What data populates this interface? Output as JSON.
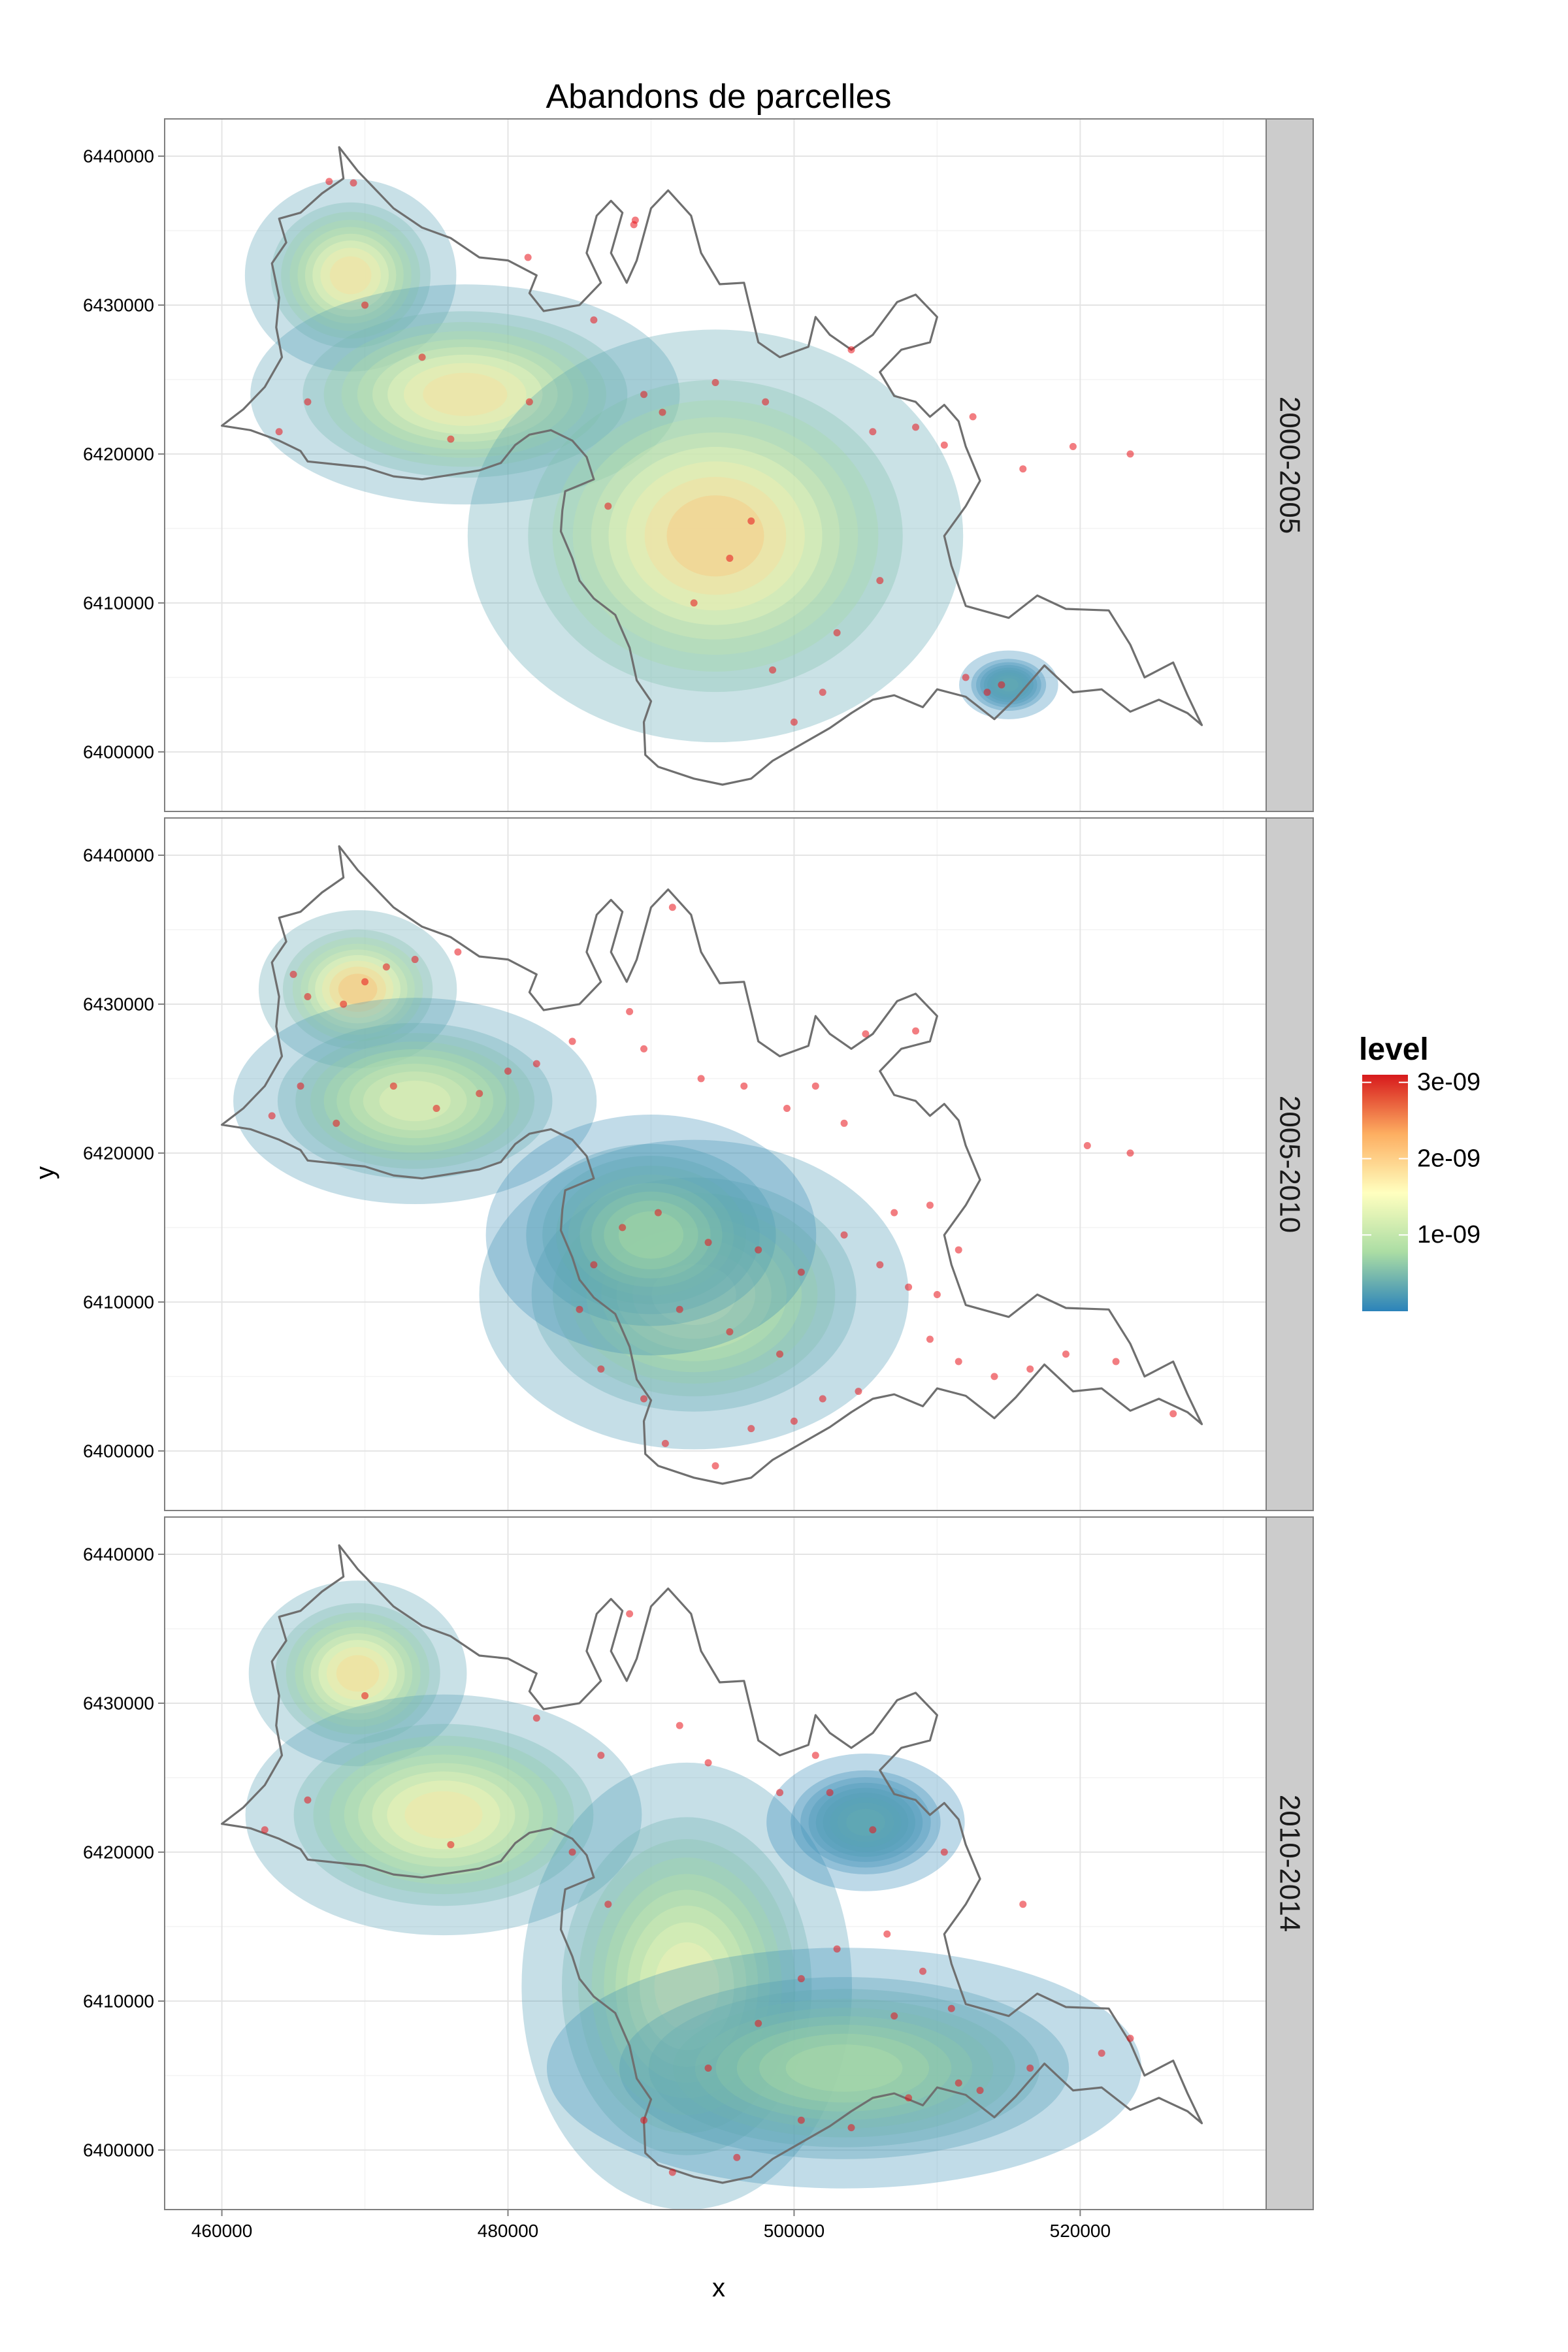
{
  "chart_data": {
    "type": "heatmap",
    "title": "Abandons de parcelles",
    "xlabel": "x",
    "ylabel": "y",
    "xlim": [
      456000,
      533000
    ],
    "ylim": [
      6396000,
      6442500
    ],
    "x_ticks": [
      460000,
      480000,
      500000,
      520000
    ],
    "y_ticks": [
      6400000,
      6410000,
      6420000,
      6430000,
      6440000
    ],
    "grid": true,
    "facets": [
      "2000-2005",
      "2005-2010",
      "2010-2014"
    ],
    "legend": {
      "title": "level",
      "position": "right",
      "min": 0,
      "max": 3.1e-09,
      "ticks": [
        {
          "value": 1e-09,
          "label": "1e-09"
        },
        {
          "value": 2e-09,
          "label": "2e-09"
        },
        {
          "value": 3e-09,
          "label": "3e-09"
        }
      ],
      "colors": [
        "#2b83ba",
        "#abdda4",
        "#ffffbf",
        "#fdae61",
        "#d7191c"
      ]
    },
    "boundary": [
      [
        460000,
        6421900
      ],
      [
        462000,
        6421600
      ],
      [
        464000,
        6420900
      ],
      [
        465500,
        6420200
      ],
      [
        466000,
        6419500
      ],
      [
        468000,
        6419300
      ],
      [
        470000,
        6419100
      ],
      [
        472000,
        6418500
      ],
      [
        474000,
        6418300
      ],
      [
        476000,
        6418600
      ],
      [
        478000,
        6418900
      ],
      [
        479500,
        6419400
      ],
      [
        480500,
        6420600
      ],
      [
        481500,
        6421300
      ],
      [
        483000,
        6421600
      ],
      [
        484500,
        6420900
      ],
      [
        485500,
        6419800
      ],
      [
        486000,
        6418300
      ],
      [
        484000,
        6417500
      ],
      [
        483800,
        6416200
      ],
      [
        483700,
        6414800
      ],
      [
        484500,
        6413000
      ],
      [
        485000,
        6411500
      ],
      [
        486000,
        6410300
      ],
      [
        487500,
        6409200
      ],
      [
        488500,
        6407000
      ],
      [
        489000,
        6404800
      ],
      [
        490000,
        6403400
      ],
      [
        489500,
        6402000
      ],
      [
        489600,
        6399800
      ],
      [
        490500,
        6399000
      ],
      [
        493000,
        6398200
      ],
      [
        495000,
        6397800
      ],
      [
        497000,
        6398200
      ],
      [
        498500,
        6399400
      ],
      [
        500500,
        6400500
      ],
      [
        502500,
        6401600
      ],
      [
        504000,
        6402600
      ],
      [
        505500,
        6403500
      ],
      [
        507000,
        6403800
      ],
      [
        509000,
        6403000
      ],
      [
        510000,
        6404200
      ],
      [
        512000,
        6403700
      ],
      [
        514000,
        6402200
      ],
      [
        515500,
        6403600
      ],
      [
        517500,
        6405800
      ],
      [
        519500,
        6404000
      ],
      [
        521500,
        6404200
      ],
      [
        523500,
        6402700
      ],
      [
        525500,
        6403500
      ],
      [
        527500,
        6402600
      ],
      [
        528500,
        6401800
      ],
      [
        527500,
        6403800
      ],
      [
        526500,
        6406000
      ],
      [
        524500,
        6405000
      ],
      [
        523500,
        6407200
      ],
      [
        522000,
        6409500
      ],
      [
        519000,
        6409600
      ],
      [
        517000,
        6410500
      ],
      [
        515000,
        6409000
      ],
      [
        512000,
        6409800
      ],
      [
        511000,
        6412500
      ],
      [
        510500,
        6414500
      ],
      [
        512000,
        6416500
      ],
      [
        513000,
        6418200
      ],
      [
        512000,
        6420500
      ],
      [
        511500,
        6422200
      ],
      [
        510500,
        6423300
      ],
      [
        509500,
        6422500
      ],
      [
        508500,
        6423500
      ],
      [
        507000,
        6423900
      ],
      [
        506000,
        6425500
      ],
      [
        507500,
        6427000
      ],
      [
        509500,
        6427500
      ],
      [
        510000,
        6429200
      ],
      [
        508500,
        6430700
      ],
      [
        507200,
        6430200
      ],
      [
        505500,
        6428000
      ],
      [
        504000,
        6427000
      ],
      [
        502500,
        6428000
      ],
      [
        501500,
        6429200
      ],
      [
        501000,
        6427200
      ],
      [
        499000,
        6426500
      ],
      [
        497500,
        6427500
      ],
      [
        497000,
        6429500
      ],
      [
        496500,
        6431500
      ],
      [
        494800,
        6431400
      ],
      [
        493500,
        6433500
      ],
      [
        492800,
        6436000
      ],
      [
        491200,
        6437700
      ],
      [
        490000,
        6436500
      ],
      [
        489000,
        6433000
      ],
      [
        488300,
        6431500
      ],
      [
        487200,
        6433500
      ],
      [
        488000,
        6436200
      ],
      [
        487200,
        6437000
      ],
      [
        486200,
        6436000
      ],
      [
        485500,
        6433500
      ],
      [
        486500,
        6431500
      ],
      [
        485000,
        6430000
      ],
      [
        482500,
        6429600
      ],
      [
        481500,
        6430800
      ],
      [
        482000,
        6432000
      ],
      [
        480000,
        6433000
      ],
      [
        478000,
        6433200
      ],
      [
        476000,
        6434500
      ],
      [
        474000,
        6435200
      ],
      [
        472000,
        6436500
      ],
      [
        470500,
        6438000
      ],
      [
        469500,
        6439000
      ],
      [
        468200,
        6440600
      ],
      [
        468500,
        6438500
      ],
      [
        467000,
        6437500
      ],
      [
        465500,
        6436200
      ],
      [
        464000,
        6435800
      ],
      [
        464500,
        6434200
      ],
      [
        463500,
        6432800
      ],
      [
        464000,
        6430500
      ],
      [
        463800,
        6428500
      ],
      [
        464200,
        6426500
      ],
      [
        463000,
        6424500
      ],
      [
        461500,
        6423000
      ],
      [
        460000,
        6421900
      ]
    ],
    "panels": [
      {
        "facet": "2000-2005",
        "density_peaks": [
          {
            "x": 469000,
            "y": 6432000,
            "sx": 3200,
            "sy": 2800,
            "peak": 2.1e-09
          },
          {
            "x": 477000,
            "y": 6424000,
            "sx": 6500,
            "sy": 3200,
            "peak": 2.1e-09
          },
          {
            "x": 494500,
            "y": 6414500,
            "sx": 7500,
            "sy": 6000,
            "peak": 2.4e-09
          },
          {
            "x": 515000,
            "y": 6404500,
            "sx": 1500,
            "sy": 1000,
            "peak": 4e-10
          }
        ],
        "points": [
          {
            "x": 467500,
            "y": 6438300
          },
          {
            "x": 469200,
            "y": 6438200
          },
          {
            "x": 481400,
            "y": 6433200
          },
          {
            "x": 488800,
            "y": 6435400
          },
          {
            "x": 488900,
            "y": 6435700
          },
          {
            "x": 486000,
            "y": 6429000
          },
          {
            "x": 489500,
            "y": 6424000
          },
          {
            "x": 494500,
            "y": 6424800
          },
          {
            "x": 498000,
            "y": 6423500
          },
          {
            "x": 504000,
            "y": 6427000
          },
          {
            "x": 508500,
            "y": 6421800
          },
          {
            "x": 505500,
            "y": 6421500
          },
          {
            "x": 510500,
            "y": 6420600
          },
          {
            "x": 514500,
            "y": 6404500
          },
          {
            "x": 513500,
            "y": 6404000
          },
          {
            "x": 512000,
            "y": 6405000
          },
          {
            "x": 500000,
            "y": 6402000
          },
          {
            "x": 502000,
            "y": 6404000
          },
          {
            "x": 490800,
            "y": 6422800
          },
          {
            "x": 495500,
            "y": 6413000
          },
          {
            "x": 493000,
            "y": 6410000
          },
          {
            "x": 497000,
            "y": 6415500
          },
          {
            "x": 487000,
            "y": 6416500
          },
          {
            "x": 481500,
            "y": 6423500
          },
          {
            "x": 476000,
            "y": 6421000
          },
          {
            "x": 474000,
            "y": 6426500
          },
          {
            "x": 470000,
            "y": 6430000
          },
          {
            "x": 466000,
            "y": 6423500
          },
          {
            "x": 464000,
            "y": 6421500
          },
          {
            "x": 523500,
            "y": 6420000
          },
          {
            "x": 519500,
            "y": 6420500
          },
          {
            "x": 516000,
            "y": 6419000
          },
          {
            "x": 512500,
            "y": 6422500
          },
          {
            "x": 506000,
            "y": 6411500
          },
          {
            "x": 503000,
            "y": 6408000
          },
          {
            "x": 498500,
            "y": 6405500
          }
        ]
      },
      {
        "facet": "2005-2010",
        "density_peaks": [
          {
            "x": 469500,
            "y": 6431000,
            "sx": 3000,
            "sy": 2300,
            "peak": 2.5e-09
          },
          {
            "x": 473500,
            "y": 6423500,
            "sx": 5500,
            "sy": 3000,
            "peak": 1.6e-09
          },
          {
            "x": 493000,
            "y": 6410500,
            "sx": 6500,
            "sy": 4500,
            "peak": 1.6e-09
          },
          {
            "x": 490000,
            "y": 6414500,
            "sx": 5000,
            "sy": 3500,
            "peak": 9e-10
          }
        ],
        "points": [
          {
            "x": 470000,
            "y": 6431500
          },
          {
            "x": 468500,
            "y": 6430000
          },
          {
            "x": 471500,
            "y": 6432500
          },
          {
            "x": 466000,
            "y": 6430500
          },
          {
            "x": 473500,
            "y": 6433000
          },
          {
            "x": 476500,
            "y": 6433500
          },
          {
            "x": 465000,
            "y": 6432000
          },
          {
            "x": 472000,
            "y": 6424500
          },
          {
            "x": 475000,
            "y": 6423000
          },
          {
            "x": 478000,
            "y": 6424000
          },
          {
            "x": 480000,
            "y": 6425500
          },
          {
            "x": 482000,
            "y": 6426000
          },
          {
            "x": 468000,
            "y": 6422000
          },
          {
            "x": 463500,
            "y": 6422500
          },
          {
            "x": 465500,
            "y": 6424500
          },
          {
            "x": 484500,
            "y": 6427500
          },
          {
            "x": 488500,
            "y": 6429500
          },
          {
            "x": 489500,
            "y": 6427000
          },
          {
            "x": 493500,
            "y": 6425000
          },
          {
            "x": 496500,
            "y": 6424500
          },
          {
            "x": 499500,
            "y": 6423000
          },
          {
            "x": 501500,
            "y": 6424500
          },
          {
            "x": 503500,
            "y": 6422000
          },
          {
            "x": 505000,
            "y": 6428000
          },
          {
            "x": 508500,
            "y": 6428200
          },
          {
            "x": 491500,
            "y": 6436500
          },
          {
            "x": 486000,
            "y": 6412500
          },
          {
            "x": 488000,
            "y": 6415000
          },
          {
            "x": 490500,
            "y": 6416000
          },
          {
            "x": 494000,
            "y": 6414000
          },
          {
            "x": 497500,
            "y": 6413500
          },
          {
            "x": 500500,
            "y": 6412000
          },
          {
            "x": 503500,
            "y": 6414500
          },
          {
            "x": 506000,
            "y": 6412500
          },
          {
            "x": 508000,
            "y": 6411000
          },
          {
            "x": 510000,
            "y": 6410500
          },
          {
            "x": 511500,
            "y": 6413500
          },
          {
            "x": 509500,
            "y": 6407500
          },
          {
            "x": 511500,
            "y": 6406000
          },
          {
            "x": 514000,
            "y": 6405000
          },
          {
            "x": 516500,
            "y": 6405500
          },
          {
            "x": 519000,
            "y": 6406500
          },
          {
            "x": 522500,
            "y": 6406000
          },
          {
            "x": 526500,
            "y": 6402500
          },
          {
            "x": 520500,
            "y": 6420500
          },
          {
            "x": 523500,
            "y": 6420000
          },
          {
            "x": 492000,
            "y": 6409500
          },
          {
            "x": 495500,
            "y": 6408000
          },
          {
            "x": 499000,
            "y": 6406500
          },
          {
            "x": 502000,
            "y": 6403500
          },
          {
            "x": 504500,
            "y": 6404000
          },
          {
            "x": 500000,
            "y": 6402000
          },
          {
            "x": 497000,
            "y": 6401500
          },
          {
            "x": 494500,
            "y": 6399000
          },
          {
            "x": 491000,
            "y": 6400500
          },
          {
            "x": 489500,
            "y": 6403500
          },
          {
            "x": 486500,
            "y": 6405500
          },
          {
            "x": 485000,
            "y": 6409500
          },
          {
            "x": 507000,
            "y": 6416000
          },
          {
            "x": 509500,
            "y": 6416500
          }
        ]
      },
      {
        "facet": "2010-2014",
        "density_peaks": [
          {
            "x": 469500,
            "y": 6432000,
            "sx": 3300,
            "sy": 2700,
            "peak": 2.2e-09
          },
          {
            "x": 475500,
            "y": 6422500,
            "sx": 6000,
            "sy": 3500,
            "peak": 2e-09
          },
          {
            "x": 492500,
            "y": 6411000,
            "sx": 5000,
            "sy": 6500,
            "peak": 1.8e-09
          },
          {
            "x": 503500,
            "y": 6405500,
            "sx": 9000,
            "sy": 3500,
            "peak": 1e-09
          },
          {
            "x": 505000,
            "y": 6422000,
            "sx": 3000,
            "sy": 2000,
            "peak": 4e-10
          }
        ],
        "points": [
          {
            "x": 488500,
            "y": 6436000
          },
          {
            "x": 486500,
            "y": 6426500
          },
          {
            "x": 482000,
            "y": 6429000
          },
          {
            "x": 492000,
            "y": 6428500
          },
          {
            "x": 494000,
            "y": 6426000
          },
          {
            "x": 499000,
            "y": 6424000
          },
          {
            "x": 501500,
            "y": 6426500
          },
          {
            "x": 502500,
            "y": 6424000
          },
          {
            "x": 505500,
            "y": 6421500
          },
          {
            "x": 510500,
            "y": 6420000
          },
          {
            "x": 516000,
            "y": 6416500
          },
          {
            "x": 521500,
            "y": 6406500
          },
          {
            "x": 523500,
            "y": 6407500
          },
          {
            "x": 516500,
            "y": 6405500
          },
          {
            "x": 513000,
            "y": 6404000
          },
          {
            "x": 508000,
            "y": 6403500
          },
          {
            "x": 504000,
            "y": 6401500
          },
          {
            "x": 500500,
            "y": 6402000
          },
          {
            "x": 496000,
            "y": 6399500
          },
          {
            "x": 491500,
            "y": 6398500
          },
          {
            "x": 489500,
            "y": 6402000
          },
          {
            "x": 494000,
            "y": 6405500
          },
          {
            "x": 497500,
            "y": 6408500
          },
          {
            "x": 500500,
            "y": 6411500
          },
          {
            "x": 503000,
            "y": 6413500
          },
          {
            "x": 506500,
            "y": 6414500
          },
          {
            "x": 509000,
            "y": 6412000
          },
          {
            "x": 511000,
            "y": 6409500
          },
          {
            "x": 511500,
            "y": 6404500
          },
          {
            "x": 487000,
            "y": 6416500
          },
          {
            "x": 484500,
            "y": 6420000
          },
          {
            "x": 476000,
            "y": 6420500
          },
          {
            "x": 470000,
            "y": 6430500
          },
          {
            "x": 466000,
            "y": 6423500
          },
          {
            "x": 463000,
            "y": 6421500
          },
          {
            "x": 507000,
            "y": 6409000
          }
        ]
      }
    ]
  }
}
